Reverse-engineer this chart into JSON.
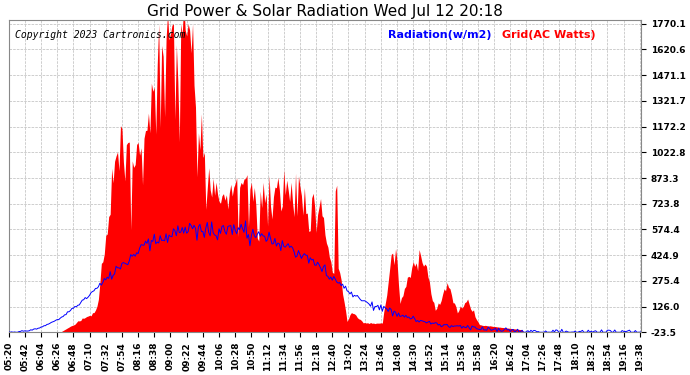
{
  "title": "Grid Power & Solar Radiation Wed Jul 12 20:18",
  "copyright": "Copyright 2023 Cartronics.com",
  "legend_radiation": "Radiation(w/m2)",
  "legend_grid": "Grid(AC Watts)",
  "background_color": "#ffffff",
  "plot_bg_color": "#ffffff",
  "grid_color": "#bbbbbb",
  "yticks": [
    -23.5,
    126.0,
    275.4,
    424.9,
    574.4,
    723.8,
    873.3,
    1022.8,
    1172.2,
    1321.7,
    1471.1,
    1620.6,
    1770.1
  ],
  "ymin": -23.5,
  "ymax": 1770.1,
  "radiation_color": "blue",
  "grid_fill_color": "red",
  "title_fontsize": 11,
  "axis_fontsize": 6.5,
  "copyright_fontsize": 7,
  "legend_fontsize": 8
}
